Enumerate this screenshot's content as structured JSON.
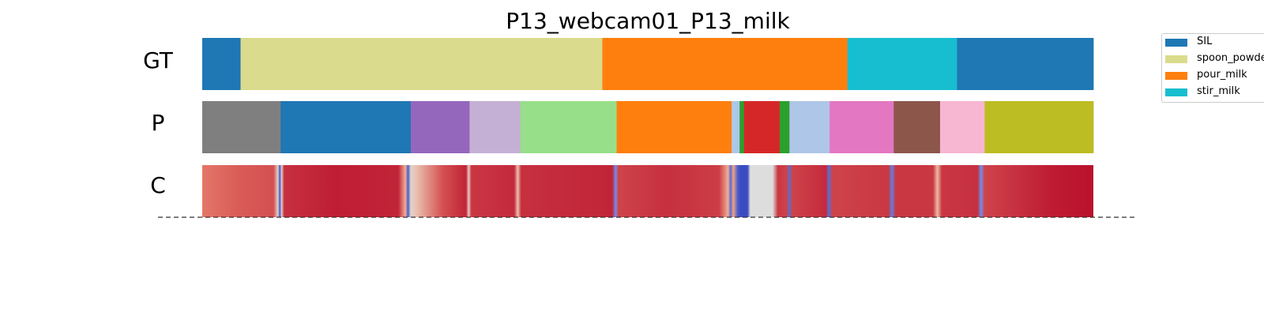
{
  "chart_data": {
    "type": "segmentation",
    "title": "P13_webcam01_P13_milk",
    "row_labels": [
      "GT",
      "P",
      "C"
    ],
    "x_range": [
      0,
      1
    ],
    "rows": [
      {
        "label": "GT",
        "segments": [
          {
            "start": 0.0,
            "end": 0.043,
            "color": "#1f77b4"
          },
          {
            "start": 0.043,
            "end": 0.449,
            "color": "#dbdb8d"
          },
          {
            "start": 0.449,
            "end": 0.724,
            "color": "#ff7f0e"
          },
          {
            "start": 0.724,
            "end": 0.847,
            "color": "#17becf"
          },
          {
            "start": 0.847,
            "end": 1.0,
            "color": "#1f77b4"
          }
        ]
      },
      {
        "label": "P",
        "segments": [
          {
            "start": 0.0,
            "end": 0.088,
            "color": "#7f7f7f"
          },
          {
            "start": 0.088,
            "end": 0.234,
            "color": "#1f77b4"
          },
          {
            "start": 0.234,
            "end": 0.3,
            "color": "#9467bd"
          },
          {
            "start": 0.3,
            "end": 0.357,
            "color": "#c5b0d5"
          },
          {
            "start": 0.357,
            "end": 0.465,
            "color": "#98df8a"
          },
          {
            "start": 0.465,
            "end": 0.594,
            "color": "#ff7f0e"
          },
          {
            "start": 0.594,
            "end": 0.603,
            "color": "#aec7e8"
          },
          {
            "start": 0.603,
            "end": 0.608,
            "color": "#2ca02c"
          },
          {
            "start": 0.608,
            "end": 0.648,
            "color": "#d62728"
          },
          {
            "start": 0.648,
            "end": 0.659,
            "color": "#2ca02c"
          },
          {
            "start": 0.659,
            "end": 0.704,
            "color": "#aec7e8"
          },
          {
            "start": 0.704,
            "end": 0.776,
            "color": "#e377c2"
          },
          {
            "start": 0.776,
            "end": 0.828,
            "color": "#8c564b"
          },
          {
            "start": 0.828,
            "end": 0.878,
            "color": "#f7b6d2"
          },
          {
            "start": 0.878,
            "end": 1.0,
            "color": "#bcbd22"
          }
        ]
      },
      {
        "label": "C",
        "colormap": "coolwarm",
        "confidence_stops": [
          {
            "x": 0.0,
            "v": 0.82
          },
          {
            "x": 0.04,
            "v": 0.86
          },
          {
            "x": 0.08,
            "v": 0.88
          },
          {
            "x": 0.085,
            "v": 0.55
          },
          {
            "x": 0.087,
            "v": 0.02
          },
          {
            "x": 0.089,
            "v": 0.55
          },
          {
            "x": 0.092,
            "v": 0.93
          },
          {
            "x": 0.15,
            "v": 0.96
          },
          {
            "x": 0.22,
            "v": 0.95
          },
          {
            "x": 0.228,
            "v": 0.7
          },
          {
            "x": 0.231,
            "v": 0.05
          },
          {
            "x": 0.234,
            "v": 0.55
          },
          {
            "x": 0.24,
            "v": 0.62
          },
          {
            "x": 0.27,
            "v": 0.88
          },
          {
            "x": 0.296,
            "v": 0.95
          },
          {
            "x": 0.299,
            "v": 0.58
          },
          {
            "x": 0.302,
            "v": 0.92
          },
          {
            "x": 0.35,
            "v": 0.94
          },
          {
            "x": 0.354,
            "v": 0.62
          },
          {
            "x": 0.358,
            "v": 0.93
          },
          {
            "x": 0.46,
            "v": 0.95
          },
          {
            "x": 0.464,
            "v": 0.2
          },
          {
            "x": 0.467,
            "v": 0.9
          },
          {
            "x": 0.52,
            "v": 0.93
          },
          {
            "x": 0.58,
            "v": 0.91
          },
          {
            "x": 0.59,
            "v": 0.7
          },
          {
            "x": 0.593,
            "v": 0.1
          },
          {
            "x": 0.596,
            "v": 0.75
          },
          {
            "x": 0.601,
            "v": 0.05
          },
          {
            "x": 0.604,
            "v": 0.0
          },
          {
            "x": 0.612,
            "v": 0.0
          },
          {
            "x": 0.615,
            "v": 0.5
          },
          {
            "x": 0.64,
            "v": 0.5
          },
          {
            "x": 0.646,
            "v": 0.92
          },
          {
            "x": 0.656,
            "v": 0.9
          },
          {
            "x": 0.659,
            "v": 0.1
          },
          {
            "x": 0.662,
            "v": 0.9
          },
          {
            "x": 0.7,
            "v": 0.94
          },
          {
            "x": 0.703,
            "v": 0.1
          },
          {
            "x": 0.707,
            "v": 0.9
          },
          {
            "x": 0.77,
            "v": 0.92
          },
          {
            "x": 0.774,
            "v": 0.15
          },
          {
            "x": 0.778,
            "v": 0.92
          },
          {
            "x": 0.82,
            "v": 0.92
          },
          {
            "x": 0.825,
            "v": 0.65
          },
          {
            "x": 0.83,
            "v": 0.92
          },
          {
            "x": 0.87,
            "v": 0.93
          },
          {
            "x": 0.874,
            "v": 0.2
          },
          {
            "x": 0.878,
            "v": 0.9
          },
          {
            "x": 0.95,
            "v": 0.96
          },
          {
            "x": 1.0,
            "v": 0.98
          }
        ]
      }
    ],
    "legend": {
      "placement": "top-right",
      "entries": [
        {
          "label": "SIL",
          "color": "#1f77b4"
        },
        {
          "label": "spoon_powder",
          "color": "#dbdb8d"
        },
        {
          "label": "pour_milk",
          "color": "#ff7f0e"
        },
        {
          "label": "stir_milk",
          "color": "#17becf"
        }
      ]
    },
    "baseline": "dashed"
  }
}
